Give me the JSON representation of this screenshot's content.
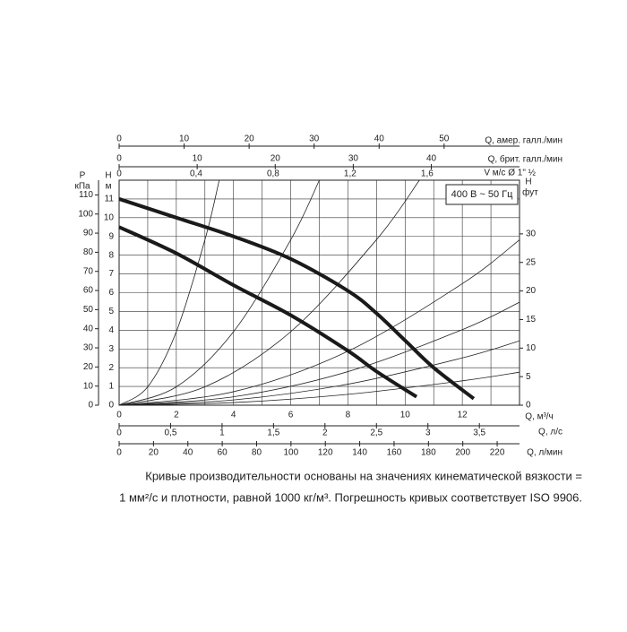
{
  "chart_data": {
    "type": "line",
    "annotation": "400 В ~ 50 Гц",
    "xlabel": "Q, м³/ч",
    "xlim": [
      0,
      14
    ],
    "xticks": [
      0,
      2,
      4,
      6,
      8,
      10,
      12
    ],
    "xminor": [
      1,
      3,
      5,
      7,
      9,
      11,
      13
    ],
    "ylabel": "H",
    "yunit": "м",
    "ylim": [
      0,
      12
    ],
    "yticks": [
      0,
      1,
      2,
      3,
      4,
      5,
      6,
      7,
      8,
      9,
      10,
      11
    ],
    "grid": true,
    "series": [
      {
        "color": "#1a1a1a",
        "x": [
          0,
          2,
          4,
          6,
          8,
          9,
          10,
          11,
          12.4
        ],
        "values": [
          11.0,
          10.0,
          9.0,
          7.8,
          6.1,
          4.9,
          3.45,
          2.0,
          0.35
        ]
      },
      {
        "color": "#1a1a1a",
        "x": [
          0,
          2,
          4,
          6,
          8,
          9,
          10.4
        ],
        "values": [
          9.5,
          8.1,
          6.4,
          4.8,
          2.9,
          1.8,
          0.45
        ]
      }
    ],
    "system_curves": [
      {
        "x": [
          0,
          1,
          2,
          3,
          3.5
        ],
        "values": [
          0,
          0.98,
          3.92,
          8.82,
          12.0
        ]
      },
      {
        "x": [
          0,
          2,
          4,
          6,
          7
        ],
        "values": [
          0,
          0.98,
          3.92,
          8.82,
          12.0
        ]
      },
      {
        "x": [
          0,
          3,
          6,
          9,
          10.5
        ],
        "values": [
          0,
          0.98,
          3.92,
          8.83,
          12.0
        ]
      },
      {
        "x": [
          0,
          4,
          8,
          12,
          14
        ],
        "values": [
          0,
          0.72,
          2.88,
          6.48,
          8.82
        ]
      },
      {
        "x": [
          0,
          4,
          8,
          12,
          14
        ],
        "values": [
          0,
          0.45,
          1.79,
          4.03,
          5.49
        ]
      },
      {
        "x": [
          0,
          4,
          8,
          12,
          14
        ],
        "values": [
          0,
          0.28,
          1.12,
          2.52,
          3.43
        ]
      },
      {
        "x": [
          0,
          4,
          8,
          12,
          14
        ],
        "values": [
          0,
          0.14,
          0.58,
          1.3,
          1.76
        ]
      }
    ],
    "top_axes": [
      {
        "label": "Q, амер. галл./мин",
        "xlim": [
          0,
          61.6
        ],
        "xticks": [
          0,
          10,
          20,
          30,
          40,
          50
        ]
      },
      {
        "label": "Q, брит. галл./мин",
        "xlim": [
          0,
          51.3
        ],
        "xticks": [
          0,
          10,
          20,
          30,
          40
        ]
      },
      {
        "label": "V м/с Ø 1\" ½",
        "xlim": [
          0,
          2.08
        ],
        "xticks": [
          0,
          {
            "value": 0.4,
            "label": "0,4"
          },
          {
            "value": 0.8,
            "label": "0,8"
          },
          {
            "value": 1.2,
            "label": "1,2"
          },
          {
            "value": 1.6,
            "label": "1,6"
          }
        ]
      }
    ],
    "bottom_axes": [
      {
        "label": "Q, л/с",
        "xlim": [
          0,
          3.89
        ],
        "xticks": [
          0,
          {
            "value": 0.5,
            "label": "0,5"
          },
          1,
          {
            "value": 1.5,
            "label": "1,5"
          },
          2,
          {
            "value": 2.5,
            "label": "2,5"
          },
          3,
          {
            "value": 3.5,
            "label": "3,5"
          }
        ]
      },
      {
        "label": "Q, л/мин",
        "xlim": [
          0,
          233
        ],
        "xticks": [
          0,
          20,
          40,
          60,
          80,
          100,
          120,
          140,
          160,
          180,
          200,
          220
        ]
      }
    ],
    "left_axis": {
      "label": "P",
      "unit": "кПа",
      "ylim": [
        0,
        117.7
      ],
      "yticks": [
        0,
        10,
        20,
        30,
        40,
        50,
        60,
        70,
        80,
        90,
        100,
        110
      ]
    },
    "right_axis": {
      "label": "H",
      "unit": "фут",
      "ylim": [
        0,
        39.4
      ],
      "yticks": [
        0,
        5,
        10,
        15,
        20,
        25,
        30
      ]
    },
    "caption": [
      "Кривые производительности основаны на значениях кинематической вязкости =",
      "1 мм²/с и плотности, равной 1000 кг/м³. Погрешность кривых соответствует ISO 9906."
    ]
  }
}
